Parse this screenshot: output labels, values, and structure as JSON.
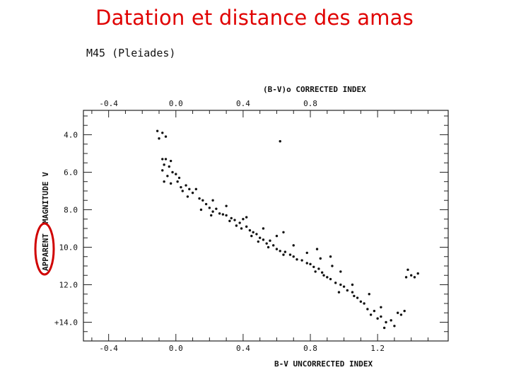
{
  "slide": {
    "title": "Datation et distance des amas",
    "accent_color": "#e00000"
  },
  "chart_data": {
    "type": "scatter",
    "title": "M45 (Pleiades)",
    "xlabel": "B-V UNCORRECTED INDEX",
    "x2label": "(B-V)o CORRECTED INDEX",
    "ylabel_main": "MAGNITUDE V",
    "ylabel_circled": "APPARENT",
    "xlim": [
      -0.55,
      1.62
    ],
    "ylim": [
      15.0,
      2.7
    ],
    "y_inverted": true,
    "grid": false,
    "x_ticks": [
      {
        "value": -0.4,
        "label": "-0.4"
      },
      {
        "value": 0.0,
        "label": "0.0"
      },
      {
        "value": 0.4,
        "label": "0.4"
      },
      {
        "value": 0.8,
        "label": "0.8"
      },
      {
        "value": 1.2,
        "label": "1.2"
      }
    ],
    "x2_ticks": [
      {
        "value": -0.4,
        "label": "-0.4"
      },
      {
        "value": 0.0,
        "label": "0.0"
      },
      {
        "value": 0.4,
        "label": "0.4"
      },
      {
        "value": 0.8,
        "label": "0.8"
      }
    ],
    "y_ticks": [
      {
        "value": 4.0,
        "label": "4.0"
      },
      {
        "value": 6.0,
        "label": "6.0"
      },
      {
        "value": 8.0,
        "label": "8.0"
      },
      {
        "value": 10.0,
        "label": "10.0"
      },
      {
        "value": 12.0,
        "label": "12.0"
      },
      {
        "value": 14.0,
        "label": "+14.0"
      }
    ],
    "circle_color": "#d00000",
    "points": [
      [
        -0.11,
        3.8
      ],
      [
        -0.08,
        3.9
      ],
      [
        -0.1,
        4.2
      ],
      [
        -0.06,
        4.1
      ],
      [
        0.62,
        4.35
      ],
      [
        -0.08,
        5.3
      ],
      [
        -0.06,
        5.3
      ],
      [
        -0.03,
        5.4
      ],
      [
        -0.07,
        5.6
      ],
      [
        -0.04,
        5.7
      ],
      [
        -0.08,
        5.9
      ],
      [
        -0.02,
        6.0
      ],
      [
        0.0,
        6.1
      ],
      [
        -0.05,
        6.2
      ],
      [
        0.02,
        6.3
      ],
      [
        -0.07,
        6.5
      ],
      [
        -0.03,
        6.6
      ],
      [
        0.01,
        6.5
      ],
      [
        0.03,
        6.8
      ],
      [
        0.06,
        6.7
      ],
      [
        0.04,
        7.0
      ],
      [
        0.08,
        6.9
      ],
      [
        0.1,
        7.1
      ],
      [
        0.12,
        6.9
      ],
      [
        0.07,
        7.3
      ],
      [
        0.14,
        7.4
      ],
      [
        0.16,
        7.5
      ],
      [
        0.18,
        7.7
      ],
      [
        0.2,
        7.9
      ],
      [
        0.15,
        8.0
      ],
      [
        0.22,
        8.1
      ],
      [
        0.24,
        7.95
      ],
      [
        0.26,
        8.2
      ],
      [
        0.21,
        8.3
      ],
      [
        0.28,
        8.25
      ],
      [
        0.3,
        8.3
      ],
      [
        0.33,
        8.45
      ],
      [
        0.35,
        8.55
      ],
      [
        0.32,
        8.6
      ],
      [
        0.38,
        8.7
      ],
      [
        0.4,
        8.5
      ],
      [
        0.36,
        8.85
      ],
      [
        0.42,
        8.9
      ],
      [
        0.39,
        9.0
      ],
      [
        0.44,
        9.1
      ],
      [
        0.46,
        9.2
      ],
      [
        0.48,
        9.3
      ],
      [
        0.45,
        9.4
      ],
      [
        0.5,
        9.5
      ],
      [
        0.52,
        9.6
      ],
      [
        0.49,
        9.7
      ],
      [
        0.54,
        9.8
      ],
      [
        0.56,
        9.65
      ],
      [
        0.58,
        9.9
      ],
      [
        0.55,
        10.0
      ],
      [
        0.6,
        10.1
      ],
      [
        0.62,
        10.2
      ],
      [
        0.65,
        10.25
      ],
      [
        0.64,
        10.4
      ],
      [
        0.68,
        10.4
      ],
      [
        0.7,
        10.5
      ],
      [
        0.72,
        10.65
      ],
      [
        0.75,
        10.7
      ],
      [
        0.78,
        10.85
      ],
      [
        0.8,
        10.9
      ],
      [
        0.82,
        11.05
      ],
      [
        0.85,
        11.15
      ],
      [
        0.83,
        11.3
      ],
      [
        0.87,
        11.35
      ],
      [
        0.88,
        11.5
      ],
      [
        0.9,
        11.6
      ],
      [
        0.92,
        11.7
      ],
      [
        0.95,
        11.9
      ],
      [
        0.98,
        12.0
      ],
      [
        1.0,
        12.1
      ],
      [
        1.02,
        12.3
      ],
      [
        0.97,
        12.4
      ],
      [
        1.05,
        12.4
      ],
      [
        1.06,
        12.6
      ],
      [
        1.08,
        12.7
      ],
      [
        1.1,
        12.9
      ],
      [
        1.12,
        13.0
      ],
      [
        1.14,
        13.3
      ],
      [
        1.18,
        13.4
      ],
      [
        1.16,
        13.6
      ],
      [
        1.2,
        13.8
      ],
      [
        1.22,
        13.7
      ],
      [
        1.25,
        14.0
      ],
      [
        1.28,
        13.9
      ],
      [
        1.3,
        14.2
      ],
      [
        1.24,
        14.3
      ],
      [
        1.32,
        13.5
      ],
      [
        1.34,
        13.6
      ],
      [
        1.36,
        13.4
      ],
      [
        1.22,
        13.2
      ],
      [
        1.38,
        11.2
      ],
      [
        1.4,
        11.5
      ],
      [
        1.42,
        11.6
      ],
      [
        1.44,
        11.4
      ],
      [
        1.37,
        11.6
      ],
      [
        0.22,
        7.5
      ],
      [
        0.3,
        7.8
      ],
      [
        0.42,
        8.4
      ],
      [
        0.52,
        9.0
      ],
      [
        0.6,
        9.4
      ],
      [
        0.7,
        9.9
      ],
      [
        0.78,
        10.3
      ],
      [
        0.86,
        10.6
      ],
      [
        0.93,
        11.0
      ],
      [
        0.98,
        11.3
      ],
      [
        0.64,
        9.2
      ],
      [
        0.84,
        10.1
      ],
      [
        0.92,
        10.5
      ],
      [
        1.05,
        12.0
      ],
      [
        1.15,
        12.5
      ]
    ]
  }
}
